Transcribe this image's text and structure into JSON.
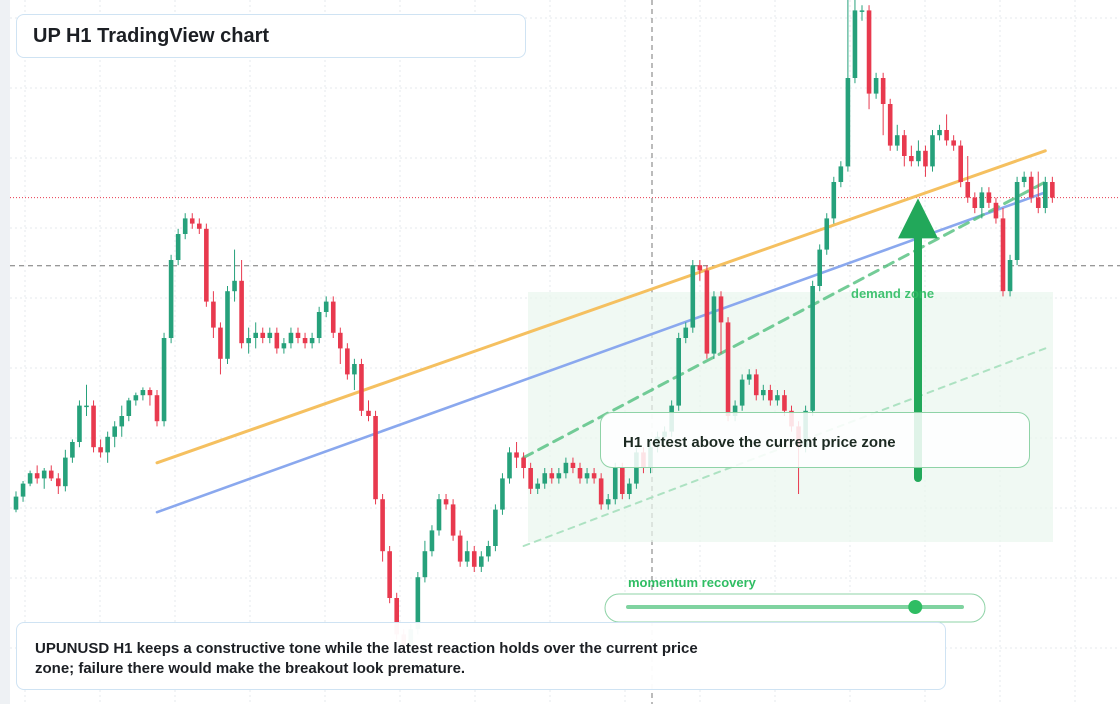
{
  "header": {
    "title": "UP H1 TradingView chart"
  },
  "annotations": {
    "retest_note": "H1 retest above the current price zone",
    "momentum_label": "momentum recovery",
    "demand_label": "demand zone",
    "commentary": "UPUNUSD H1 keeps a constructive tone while the latest reaction holds over the current price zone; failure there would make the breakout look premature."
  },
  "colors": {
    "up_candle": "#26a17b",
    "down_candle": "#e8394e",
    "orange_trendline": "#f5c060",
    "blue_trendline": "#8aa8ee",
    "green_accent": "#22a85a",
    "current_price_line": "#e8394e",
    "crosshair": "#777777"
  },
  "chart_data": {
    "type": "candlestick",
    "symbol": "UPUNUSD",
    "timeframe": "H1",
    "title": "UP H1 TradingView chart",
    "xlabel": "",
    "ylabel": "",
    "price_scale": "relative (no axis labels shown)",
    "candles": [
      [
        0.2,
        0.45,
        0.15,
        0.55
      ],
      [
        0.45,
        0.7,
        0.35,
        0.75
      ],
      [
        0.7,
        0.9,
        0.65,
        0.95
      ],
      [
        0.9,
        0.8,
        0.7,
        1.05
      ],
      [
        0.8,
        0.95,
        0.6,
        1.0
      ],
      [
        0.95,
        0.8,
        0.75,
        1.05
      ],
      [
        0.8,
        0.65,
        0.5,
        0.9
      ],
      [
        0.65,
        1.2,
        0.55,
        1.35
      ],
      [
        1.2,
        1.5,
        1.1,
        1.55
      ],
      [
        1.5,
        2.2,
        1.4,
        2.3
      ],
      [
        2.2,
        2.2,
        2.0,
        2.6
      ],
      [
        2.2,
        1.4,
        1.3,
        2.3
      ],
      [
        1.4,
        1.3,
        1.2,
        1.55
      ],
      [
        1.3,
        1.6,
        1.1,
        1.7
      ],
      [
        1.6,
        1.8,
        1.4,
        1.9
      ],
      [
        1.8,
        2.0,
        1.6,
        2.2
      ],
      [
        2.0,
        2.3,
        1.9,
        2.35
      ],
      [
        2.3,
        2.4,
        2.2,
        2.45
      ],
      [
        2.4,
        2.5,
        2.3,
        2.55
      ],
      [
        2.5,
        2.4,
        2.2,
        2.55
      ],
      [
        2.4,
        1.9,
        1.8,
        2.5
      ],
      [
        1.9,
        3.5,
        1.8,
        3.6
      ],
      [
        3.5,
        5.0,
        3.4,
        5.1
      ],
      [
        5.0,
        5.5,
        4.9,
        5.6
      ],
      [
        5.5,
        5.8,
        5.4,
        5.9
      ],
      [
        5.8,
        5.7,
        5.6,
        5.9
      ],
      [
        5.7,
        5.6,
        5.5,
        5.8
      ],
      [
        5.6,
        4.2,
        4.1,
        5.7
      ],
      [
        4.2,
        3.7,
        3.5,
        4.4
      ],
      [
        3.7,
        3.1,
        2.8,
        3.8
      ],
      [
        3.1,
        4.4,
        3.0,
        4.5
      ],
      [
        4.4,
        4.6,
        4.2,
        5.2
      ],
      [
        4.6,
        3.4,
        3.3,
        5.0
      ],
      [
        3.4,
        3.5,
        3.2,
        3.7
      ],
      [
        3.5,
        3.6,
        3.3,
        3.8
      ],
      [
        3.6,
        3.5,
        3.4,
        3.7
      ],
      [
        3.5,
        3.6,
        3.4,
        3.7
      ],
      [
        3.6,
        3.3,
        3.2,
        3.7
      ],
      [
        3.3,
        3.4,
        3.2,
        3.5
      ],
      [
        3.4,
        3.6,
        3.3,
        3.7
      ],
      [
        3.6,
        3.5,
        3.4,
        3.7
      ],
      [
        3.5,
        3.4,
        3.3,
        3.6
      ],
      [
        3.4,
        3.5,
        3.3,
        3.6
      ],
      [
        3.5,
        4.0,
        3.4,
        4.1
      ],
      [
        4.0,
        4.2,
        3.9,
        4.3
      ],
      [
        4.2,
        3.6,
        3.5,
        4.3
      ],
      [
        3.6,
        3.3,
        3.0,
        3.7
      ],
      [
        3.3,
        2.8,
        2.7,
        3.4
      ],
      [
        2.8,
        3.0,
        2.5,
        3.1
      ],
      [
        3.0,
        2.1,
        2.0,
        3.1
      ],
      [
        2.1,
        2.0,
        1.9,
        2.3
      ],
      [
        2.0,
        0.4,
        0.3,
        2.1
      ],
      [
        0.4,
        -0.6,
        -0.8,
        0.5
      ],
      [
        -0.6,
        -1.5,
        -1.6,
        -0.5
      ],
      [
        -1.5,
        -2.2,
        -2.3,
        -1.4
      ],
      [
        -2.2,
        -2.4,
        -2.6,
        -2.1
      ],
      [
        -2.4,
        -2.1,
        -2.5,
        -2.0
      ],
      [
        -2.1,
        -1.1,
        -2.2,
        -1.0
      ],
      [
        -1.1,
        -0.6,
        -1.2,
        -0.4
      ],
      [
        -0.6,
        -0.2,
        -0.7,
        -0.1
      ],
      [
        -0.2,
        0.4,
        -0.3,
        0.5
      ],
      [
        0.4,
        0.3,
        0.2,
        0.5
      ],
      [
        0.3,
        -0.3,
        -0.4,
        0.4
      ],
      [
        -0.3,
        -0.8,
        -0.9,
        -0.2
      ],
      [
        -0.8,
        -0.6,
        -0.9,
        -0.4
      ],
      [
        -0.6,
        -0.9,
        -1.0,
        -0.5
      ],
      [
        -0.9,
        -0.7,
        -1.0,
        -0.6
      ],
      [
        -0.7,
        -0.5,
        -0.8,
        -0.4
      ],
      [
        -0.5,
        0.2,
        -0.6,
        0.3
      ],
      [
        0.2,
        0.8,
        0.1,
        0.9
      ],
      [
        0.8,
        1.3,
        0.7,
        1.4
      ],
      [
        1.3,
        1.2,
        1.0,
        1.5
      ],
      [
        1.2,
        1.0,
        0.8,
        1.3
      ],
      [
        1.0,
        0.6,
        0.5,
        1.1
      ],
      [
        0.6,
        0.7,
        0.5,
        0.8
      ],
      [
        0.7,
        0.9,
        0.6,
        1.0
      ],
      [
        0.9,
        0.8,
        0.7,
        1.0
      ],
      [
        0.8,
        0.9,
        0.7,
        1.0
      ],
      [
        0.9,
        1.1,
        0.8,
        1.2
      ],
      [
        1.1,
        1.0,
        0.9,
        1.2
      ],
      [
        1.0,
        0.8,
        0.7,
        1.1
      ],
      [
        0.8,
        0.9,
        0.7,
        1.0
      ],
      [
        0.9,
        0.8,
        0.7,
        1.0
      ],
      [
        0.8,
        0.3,
        0.2,
        0.9
      ],
      [
        0.3,
        0.4,
        0.2,
        0.5
      ],
      [
        0.4,
        1.0,
        0.3,
        1.1
      ],
      [
        1.0,
        0.5,
        0.4,
        1.1
      ],
      [
        0.5,
        0.7,
        0.4,
        0.8
      ],
      [
        0.7,
        1.3,
        0.6,
        1.4
      ],
      [
        1.3,
        1.0,
        0.9,
        1.4
      ],
      [
        1.0,
        1.4,
        0.9,
        1.5
      ],
      [
        1.4,
        1.6,
        1.3,
        1.7
      ],
      [
        1.6,
        1.7,
        1.5,
        1.8
      ],
      [
        1.7,
        2.2,
        1.6,
        2.3
      ],
      [
        2.2,
        3.5,
        2.1,
        3.6
      ],
      [
        3.5,
        3.7,
        3.4,
        3.8
      ],
      [
        3.7,
        4.9,
        3.6,
        5.0
      ],
      [
        4.9,
        4.8,
        4.6,
        5.0
      ],
      [
        4.8,
        3.2,
        3.1,
        4.9
      ],
      [
        3.2,
        4.3,
        3.1,
        4.4
      ],
      [
        4.3,
        3.8,
        3.2,
        4.4
      ],
      [
        3.8,
        2.0,
        1.9,
        3.9
      ],
      [
        2.0,
        2.2,
        1.9,
        2.3
      ],
      [
        2.2,
        2.7,
        2.1,
        2.8
      ],
      [
        2.7,
        2.8,
        2.6,
        2.9
      ],
      [
        2.8,
        2.4,
        2.3,
        2.9
      ],
      [
        2.4,
        2.5,
        2.3,
        2.6
      ],
      [
        2.5,
        2.3,
        2.2,
        2.6
      ],
      [
        2.3,
        2.4,
        2.2,
        2.5
      ],
      [
        2.4,
        2.1,
        2.0,
        2.5
      ],
      [
        2.1,
        1.8,
        1.7,
        2.2
      ],
      [
        1.8,
        1.4,
        0.5,
        1.9
      ],
      [
        1.4,
        2.1,
        1.3,
        2.2
      ],
      [
        2.1,
        4.5,
        2.0,
        4.6
      ],
      [
        4.5,
        5.2,
        4.4,
        5.3
      ],
      [
        5.2,
        5.8,
        5.1,
        5.9
      ],
      [
        5.8,
        6.5,
        5.7,
        6.6
      ],
      [
        6.5,
        6.8,
        6.4,
        6.9
      ],
      [
        6.8,
        8.5,
        6.7,
        10.8
      ],
      [
        8.5,
        9.8,
        8.4,
        10.2
      ],
      [
        9.8,
        9.8,
        9.6,
        9.9
      ],
      [
        9.8,
        8.2,
        7.9,
        9.9
      ],
      [
        8.2,
        8.5,
        8.1,
        8.6
      ],
      [
        8.5,
        8.0,
        7.4,
        8.6
      ],
      [
        8.0,
        7.2,
        7.1,
        8.1
      ],
      [
        7.2,
        7.4,
        7.1,
        7.6
      ],
      [
        7.4,
        7.0,
        6.8,
        7.5
      ],
      [
        7.0,
        6.9,
        6.8,
        7.2
      ],
      [
        6.9,
        7.1,
        6.8,
        7.3
      ],
      [
        7.1,
        6.8,
        6.6,
        7.2
      ],
      [
        6.8,
        7.4,
        6.7,
        7.5
      ],
      [
        7.4,
        7.5,
        7.3,
        7.6
      ],
      [
        7.5,
        7.3,
        7.2,
        7.8
      ],
      [
        7.3,
        7.2,
        7.1,
        7.4
      ],
      [
        7.2,
        6.5,
        6.4,
        7.3
      ],
      [
        6.5,
        6.2,
        6.1,
        7.0
      ],
      [
        6.2,
        6.0,
        5.9,
        6.3
      ],
      [
        6.0,
        6.3,
        5.8,
        6.4
      ],
      [
        6.3,
        6.1,
        6.0,
        6.4
      ],
      [
        6.1,
        5.8,
        5.7,
        6.2
      ],
      [
        5.8,
        4.4,
        4.3,
        6.0
      ],
      [
        4.4,
        5.0,
        4.3,
        5.1
      ],
      [
        5.0,
        6.5,
        4.9,
        6.6
      ],
      [
        6.5,
        6.6,
        6.4,
        6.7
      ],
      [
        6.6,
        6.2,
        6.1,
        6.7
      ],
      [
        6.2,
        6.0,
        5.9,
        6.7
      ],
      [
        6.0,
        6.5,
        5.9,
        6.6
      ],
      [
        6.5,
        6.2,
        6.1,
        6.6
      ]
    ],
    "candle_format": [
      "open",
      "close",
      "low",
      "high"
    ],
    "overlays": [
      {
        "name": "",
        "kind": "trendline",
        "color": "orange",
        "from": [
          20,
          1.1
        ],
        "to": [
          146,
          7.1
        ]
      },
      {
        "name": "",
        "kind": "trendline",
        "color": "blue",
        "from": [
          20,
          0.15
        ],
        "to": [
          146,
          6.3
        ]
      },
      {
        "name": "",
        "kind": "dashed trendline",
        "color": "green",
        "from": [
          72,
          1.2
        ],
        "to": [
          146,
          6.5
        ]
      },
      {
        "name": "",
        "kind": "dashed trendline",
        "color": "light green",
        "from": [
          72,
          -0.5
        ],
        "to": [
          146,
          3.3
        ]
      },
      {
        "name": "",
        "kind": "arrow",
        "direction": "up",
        "from": [
          120,
          1.0
        ],
        "to": [
          120,
          6.8
        ]
      }
    ],
    "current_price": 6.2,
    "crosshair_price": 5.6,
    "momentum_slider_level": 0.86,
    "grid": true,
    "legend": "none"
  }
}
